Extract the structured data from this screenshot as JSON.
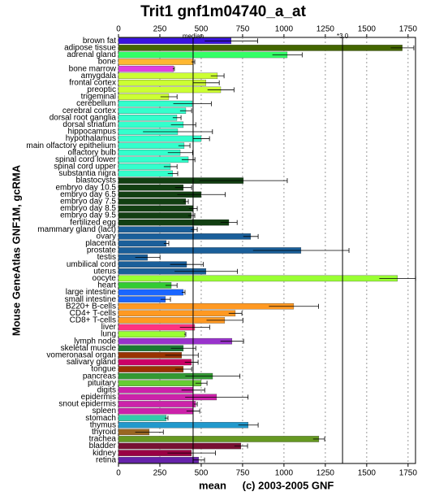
{
  "chart_data": {
    "type": "hbar",
    "title": "Trit1 gnf1m04740_a_at",
    "y_label": "Mouse GeneAtlas GNF1M, gcRMA",
    "x_label": "mean",
    "footer": "(c) 2003-2005 GNF",
    "xlim": [
      0,
      1795
    ],
    "xticks": [
      0,
      250,
      500,
      750,
      1000,
      1250,
      1500,
      1750
    ],
    "grid": true,
    "reference_lines": [
      {
        "label": "median",
        "value": 451
      },
      {
        "label": "*3.0",
        "value": 1354
      }
    ],
    "categories": [
      "brown fat",
      "adipose tissue",
      "adrenal gland",
      "bone",
      "bone marrow",
      "amygdala",
      "frontal cortex",
      "preoptic",
      "trigeminal",
      "cerebellum",
      "cerebral cortex",
      "dorsal root ganglia",
      "dorsal striatum",
      "hippocampus",
      "hypothalamus",
      "main olfactory epithelium",
      "olfactory bulb",
      "spinal cord lower",
      "spinal cord upper",
      "substantia nigra",
      "blastocysts",
      "embryo day 10.5",
      "embryo day 6.5",
      "embryo day 7.5",
      "embryo day 8.5",
      "embryo day 9.5",
      "fertilized egg",
      "mammary gland (lact)",
      "ovary",
      "placenta",
      "prostate",
      "testis",
      "umbilical cord",
      "uterus",
      "oocyte",
      "heart",
      "large intestine",
      "small intestine",
      "B220+ B-cells",
      "CD4+ T-cells",
      "CD8+ T-cells",
      "liver",
      "lung",
      "lymph node",
      "skeletal muscle",
      "vomeronasal organ",
      "salivary gland",
      "tongue",
      "pancreas",
      "pituitary",
      "digits",
      "epidermis",
      "snout epidermis",
      "spleen",
      "stomach",
      "thymus",
      "thyroid",
      "trachea",
      "bladder",
      "kidney",
      "retina"
    ],
    "values": [
      681,
      1715,
      1020,
      451,
      333,
      598,
      529,
      618,
      304,
      446,
      407,
      353,
      392,
      358,
      500,
      397,
      373,
      422,
      314,
      328,
      755,
      392,
      500,
      407,
      451,
      441,
      667,
      456,
      799,
      289,
      1103,
      176,
      412,
      529,
      1686,
      319,
      392,
      284,
      1059,
      706,
      642,
      461,
      402,
      686,
      392,
      382,
      441,
      392,
      569,
      500,
      451,
      593,
      466,
      451,
      289,
      784,
      186,
      1211,
      740,
      441,
      485
    ],
    "errors": [
      160,
      70,
      90,
      10,
      5,
      40,
      80,
      80,
      50,
      115,
      35,
      25,
      75,
      210,
      50,
      35,
      75,
      40,
      40,
      30,
      265,
      50,
      145,
      15,
      25,
      20,
      50,
      20,
      45,
      15,
      290,
      75,
      100,
      190,
      110,
      35,
      10,
      30,
      150,
      40,
      110,
      90,
      5,
      70,
      75,
      100,
      40,
      50,
      165,
      35,
      70,
      190,
      10,
      40,
      10,
      60,
      85,
      35,
      40,
      145,
      35
    ],
    "colors": [
      "#3a14e0",
      "#446600",
      "#33ff66",
      "#ffb732",
      "#e040e0",
      "#ccff33",
      "#ccff33",
      "#ccff33",
      "#ccff33",
      "#33ffcc",
      "#33ffcc",
      "#33ffcc",
      "#33ffcc",
      "#33ffcc",
      "#33ffcc",
      "#33ffcc",
      "#33ffcc",
      "#33ffcc",
      "#33ffcc",
      "#33ffcc",
      "#123f12",
      "#123f12",
      "#123f12",
      "#123f12",
      "#123f12",
      "#123f12",
      "#123f12",
      "#1a5f9a",
      "#1a5f9a",
      "#1a5f9a",
      "#1a5f9a",
      "#1a5f9a",
      "#1a5f9a",
      "#1a5f9a",
      "#99ff33",
      "#33cc33",
      "#1a66ff",
      "#1a66ff",
      "#ff9922",
      "#ff9922",
      "#ff9922",
      "#ff3380",
      "#99ff33",
      "#9933cc",
      "#1a7a33",
      "#993300",
      "#cc0066",
      "#993300",
      "#339933",
      "#66cc33",
      "#cc22aa",
      "#cc22aa",
      "#cc22aa",
      "#cc22aa",
      "#33ccaa",
      "#2299cc",
      "#996622",
      "#669922",
      "#771133",
      "#990044",
      "#6622aa"
    ]
  }
}
